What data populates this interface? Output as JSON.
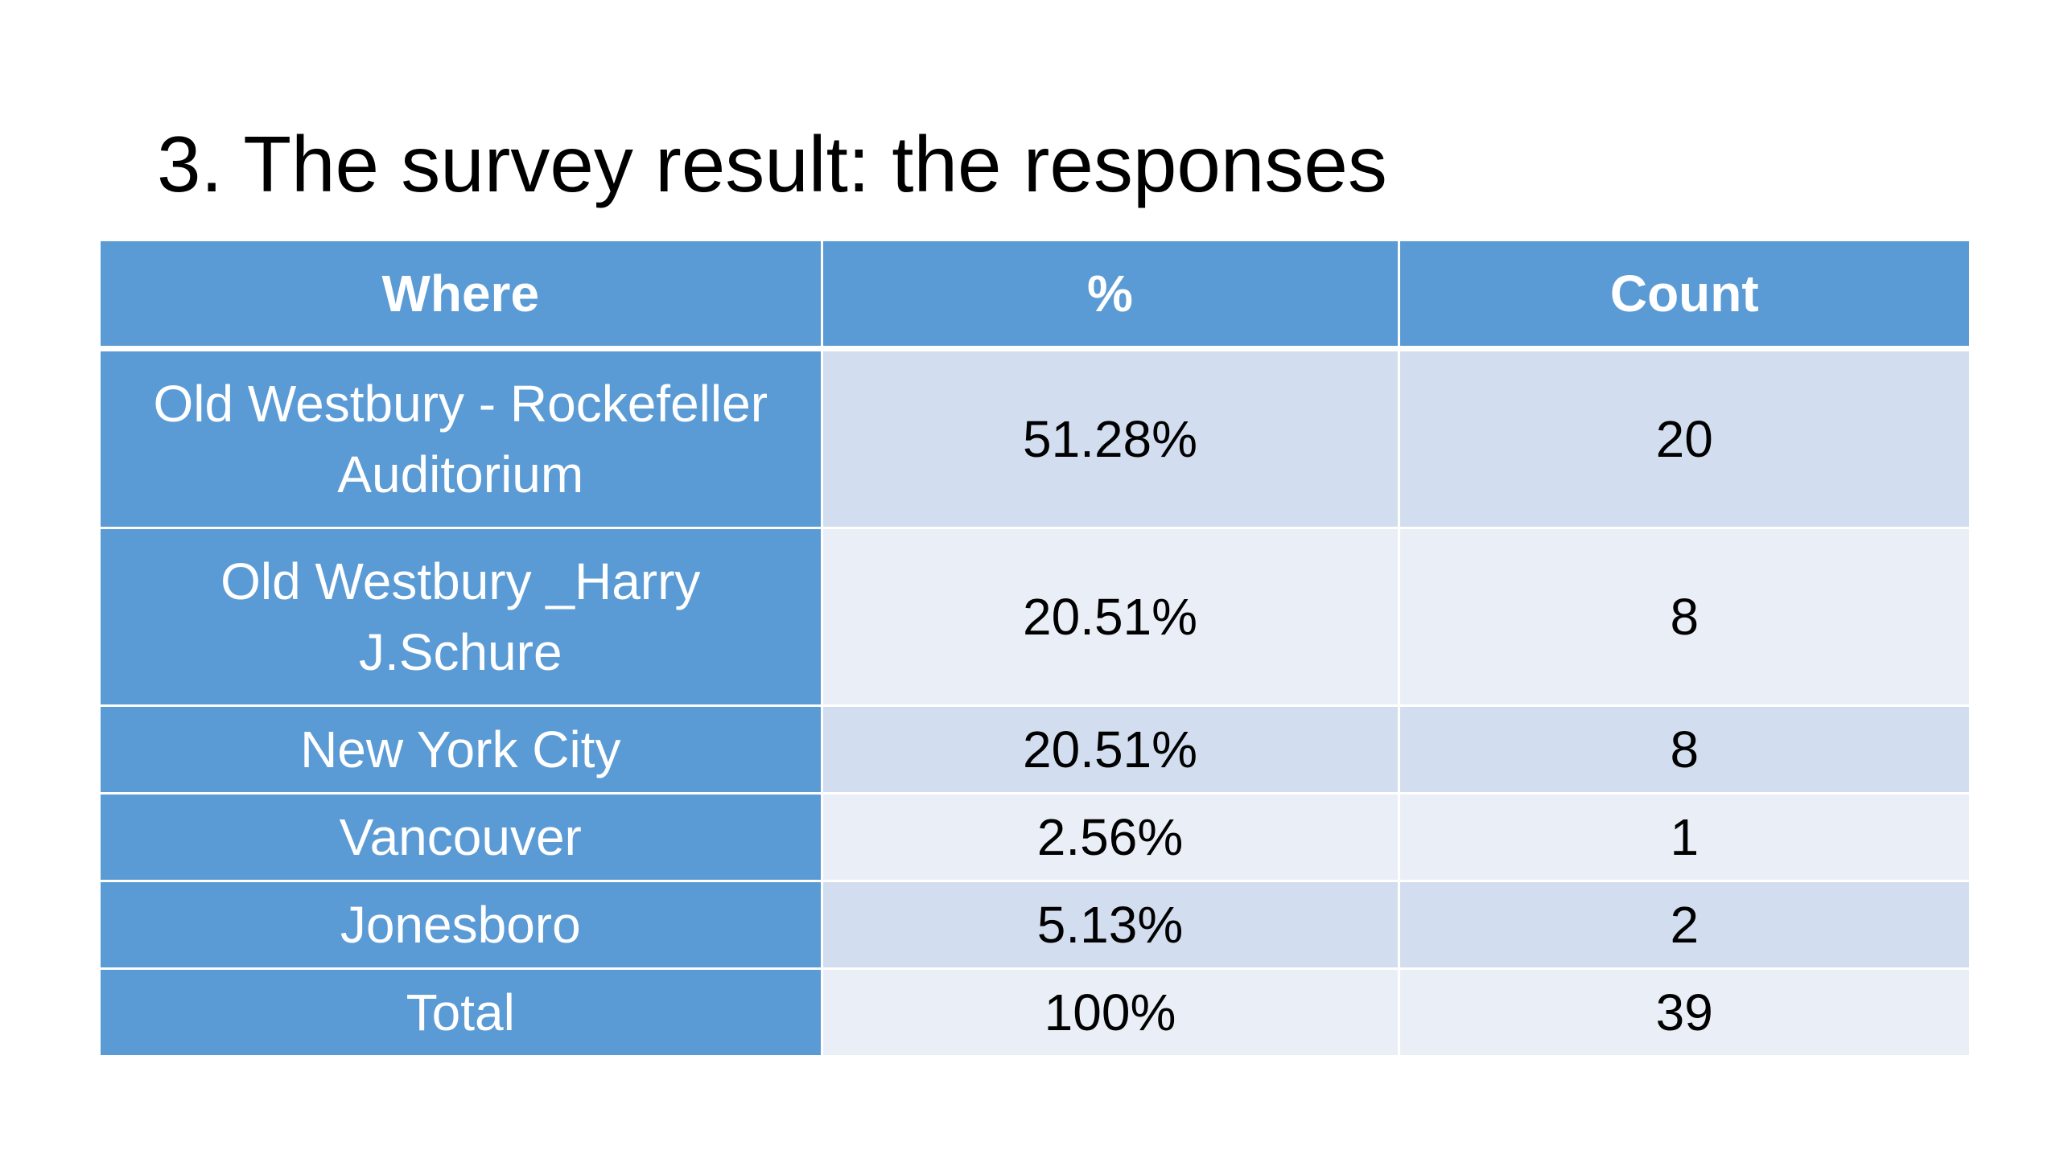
{
  "slide": {
    "title": "3. The survey result: the responses"
  },
  "table": {
    "headers": [
      "Where",
      "%",
      "Count"
    ],
    "rows": [
      {
        "where": "Old Westbury - Rockefeller Auditorium",
        "percent": "51.28%",
        "count": "20"
      },
      {
        "where": "Old Westbury _Harry J.Schure",
        "percent": "20.51%",
        "count": "8"
      },
      {
        "where": "New York City",
        "percent": "20.51%",
        "count": "8"
      },
      {
        "where": "Vancouver",
        "percent": "2.56%",
        "count": "1"
      },
      {
        "where": "Jonesboro",
        "percent": "5.13%",
        "count": "2"
      },
      {
        "where": "Total",
        "percent": "100%",
        "count": "39"
      }
    ]
  },
  "colors": {
    "header_and_label_fill": "#5b9bd5",
    "band_dark": "#d2deef",
    "band_light": "#eaeff7"
  }
}
